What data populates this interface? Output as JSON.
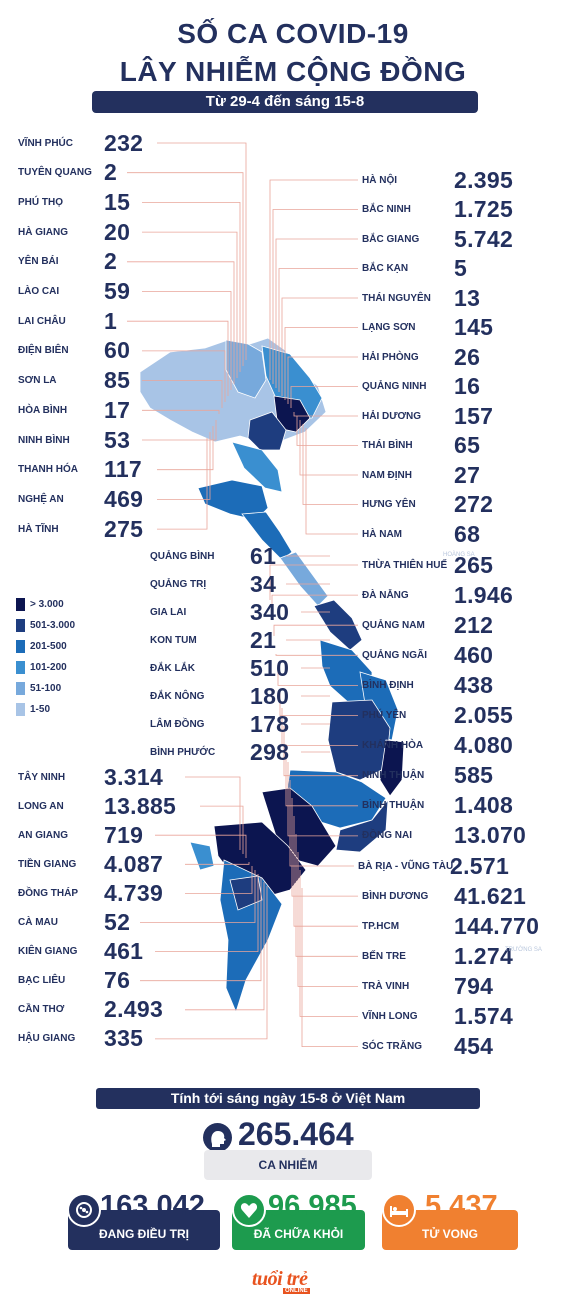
{
  "header": {
    "title_line1": "SỐ CA COVID-19",
    "title_line2": "LÂY NHIỄM CỘNG ĐỒNG",
    "period": "Từ 29-4 đến sáng 15-8"
  },
  "legend": {
    "items": [
      {
        "label": "> 3.000",
        "color": "#0c1550"
      },
      {
        "label": "501-3.000",
        "color": "#1e3d7f"
      },
      {
        "label": "201-500",
        "color": "#1c6cb8"
      },
      {
        "label": "101-200",
        "color": "#3a8fd0"
      },
      {
        "label": "51-100",
        "color": "#77a9dc"
      },
      {
        "label": "1-50",
        "color": "#a8c4e6"
      }
    ]
  },
  "chart_data": {
    "type": "table",
    "title": "SỐ CA COVID-19 LÂY NHIỄM CỘNG ĐỒNG",
    "subtitle": "Từ 29-4 đến sáng 15-8",
    "left_column": [
      {
        "province": "VĨNH PHÚC",
        "value": "232"
      },
      {
        "province": "TUYÊN QUANG",
        "value": "2"
      },
      {
        "province": "PHÚ THỌ",
        "value": "15"
      },
      {
        "province": "HÀ GIANG",
        "value": "20"
      },
      {
        "province": "YÊN BÁI",
        "value": "2"
      },
      {
        "province": "LÀO CAI",
        "value": "59"
      },
      {
        "province": "LAI CHÂU",
        "value": "1"
      },
      {
        "province": "ĐIỆN BIÊN",
        "value": "60"
      },
      {
        "province": "SƠN LA",
        "value": "85"
      },
      {
        "province": "HÒA BÌNH",
        "value": "17"
      },
      {
        "province": "NINH BÌNH",
        "value": "53"
      },
      {
        "province": "THANH HÓA",
        "value": "117"
      },
      {
        "province": "NGHỆ AN",
        "value": "469"
      },
      {
        "province": "HÀ TĨNH",
        "value": "275"
      }
    ],
    "center_column": [
      {
        "province": "QUẢNG BÌNH",
        "value": "61"
      },
      {
        "province": "QUẢNG TRỊ",
        "value": "34"
      },
      {
        "province": "GIA LAI",
        "value": "340"
      },
      {
        "province": "KON TUM",
        "value": "21"
      },
      {
        "province": "ĐẮK LẮK",
        "value": "510"
      },
      {
        "province": "ĐẮK NÔNG",
        "value": "180"
      },
      {
        "province": "LÂM ĐỒNG",
        "value": "178"
      },
      {
        "province": "BÌNH PHƯỚC",
        "value": "298"
      }
    ],
    "lower_left_column": [
      {
        "province": "TÂY NINH",
        "value": "3.314"
      },
      {
        "province": "LONG AN",
        "value": "13.885"
      },
      {
        "province": "AN GIANG",
        "value": "719"
      },
      {
        "province": "TIỀN GIANG",
        "value": "4.087"
      },
      {
        "province": "ĐỒNG THÁP",
        "value": "4.739"
      },
      {
        "province": "CÀ MAU",
        "value": "52"
      },
      {
        "province": "KIÊN GIANG",
        "value": "461"
      },
      {
        "province": "BẠC LIÊU",
        "value": "76"
      },
      {
        "province": "CẦN THƠ",
        "value": "2.493"
      },
      {
        "province": "HẬU GIANG",
        "value": "335"
      }
    ],
    "right_column": [
      {
        "province": "HÀ NỘI",
        "value": "2.395"
      },
      {
        "province": "BẮC NINH",
        "value": "1.725"
      },
      {
        "province": "BẮC GIANG",
        "value": "5.742"
      },
      {
        "province": "BẮC KẠN",
        "value": "5"
      },
      {
        "province": "THÁI NGUYÊN",
        "value": "13"
      },
      {
        "province": "LẠNG SƠN",
        "value": "145"
      },
      {
        "province": "HẢI PHÒNG",
        "value": "26"
      },
      {
        "province": "QUẢNG NINH",
        "value": "16"
      },
      {
        "province": "HẢI DƯƠNG",
        "value": "157"
      },
      {
        "province": "THÁI BÌNH",
        "value": "65"
      },
      {
        "province": "NAM ĐỊNH",
        "value": "27"
      },
      {
        "province": "HƯNG YÊN",
        "value": "272"
      },
      {
        "province": "HÀ NAM",
        "value": "68"
      },
      {
        "province": "THỪA THIÊN HUẾ",
        "value": "265"
      },
      {
        "province": "ĐÀ NẴNG",
        "value": "1.946"
      },
      {
        "province": "QUẢNG NAM",
        "value": "212"
      },
      {
        "province": "QUẢNG NGÃI",
        "value": "460"
      },
      {
        "province": "BÌNH ĐỊNH",
        "value": "438"
      },
      {
        "province": "PHÚ YÊN",
        "value": "2.055"
      },
      {
        "province": "KHÁNH HÒA",
        "value": "4.080"
      },
      {
        "province": "NINH THUẬN",
        "value": "585"
      },
      {
        "province": "BÌNH THUẬN",
        "value": "1.408"
      },
      {
        "province": "ĐỒNG NAI",
        "value": "13.070"
      },
      {
        "province": "BÀ RỊA - VŨNG TÀU",
        "value": "2.571"
      },
      {
        "province": "BÌNH DƯƠNG",
        "value": "41.621"
      },
      {
        "province": "TP.HCM",
        "value": "144.770"
      },
      {
        "province": "BẾN TRE",
        "value": "1.274"
      },
      {
        "province": "TRÀ VINH",
        "value": "794"
      },
      {
        "province": "VĨNH LONG",
        "value": "1.574"
      },
      {
        "province": "SÓC TRĂNG",
        "value": "454"
      }
    ]
  },
  "summary": {
    "heading": "Tính tới sáng ngày 15-8 ở Việt Nam",
    "cases_value": "265.464",
    "cases_label": "CA NHIỄM",
    "treating_value": "163.042",
    "treating_label": "ĐANG ĐIỀU TRỊ",
    "recovered_value": "96.985",
    "recovered_label": "ĐÃ CHỮA KHỎI",
    "deaths_value": "5.437",
    "deaths_label": "TỬ VONG"
  },
  "colors": {
    "navy": "#23305e",
    "green": "#1d9b4e",
    "orange": "#f08030",
    "gray_pill": "#e9e9ec",
    "connector": "#e9a59a"
  },
  "logo": {
    "text": "tuổi trẻ",
    "sub": "ONLINE"
  }
}
